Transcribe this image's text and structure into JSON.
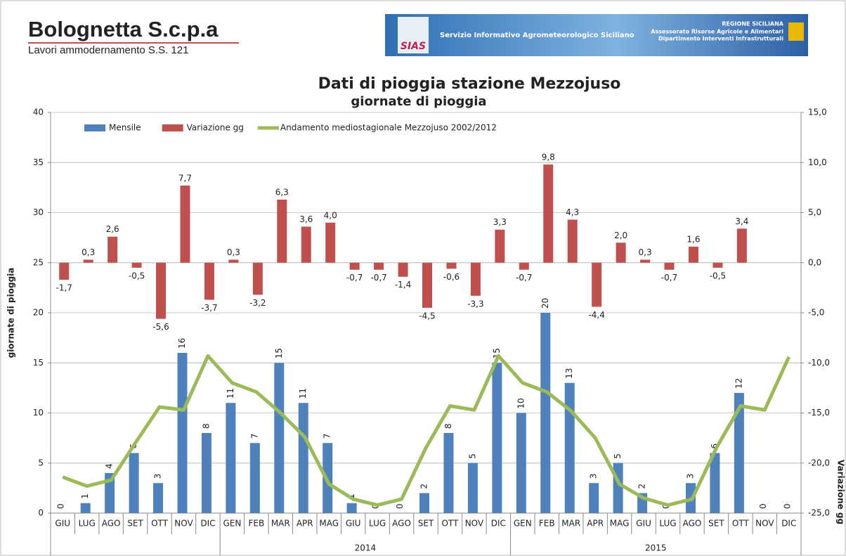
{
  "header": {
    "company": "Bolognetta S.c.p.a",
    "project": "Lavori ammodernamento S.S. 121",
    "banner": {
      "logo": "SIAS",
      "service": "Servizio Informativo Agrometeorologico Siciliano",
      "region": "REGIONE SICILIANA",
      "department1": "Assessorato Risorse Agricole e Alimentari",
      "department2": "Dipartimento Interventi Infrastrutturali"
    }
  },
  "chart_data": {
    "type": "combo",
    "title": "Dati di pioggia stazione Mezzojuso",
    "subtitle": "giornate di pioggia",
    "y_label": "giornate di pioggia",
    "y2_label": "Variazione gg",
    "categories": [
      "GIU",
      "LUG",
      "AGO",
      "SET",
      "OTT",
      "NOV",
      "DIC",
      "GEN",
      "FEB",
      "MAR",
      "APR",
      "MAG",
      "GIU",
      "LUG",
      "AGO",
      "SET",
      "OTT",
      "NOV",
      "DIC",
      "GEN",
      "FEB",
      "MAR",
      "APR",
      "MAG",
      "GIU",
      "LUG",
      "AGO",
      "SET",
      "OTT",
      "NOV",
      "DIC"
    ],
    "years": [
      null,
      null,
      null,
      null,
      null,
      null,
      null,
      "2014",
      "2014",
      "2014",
      "2014",
      "2014",
      "2014",
      "2014",
      "2014",
      "2014",
      "2014",
      "2014",
      "2014",
      "2015",
      "2015",
      "2015",
      "2015",
      "2015",
      "2015",
      "2015",
      "2015",
      "2015",
      "2015",
      "2015",
      "2015"
    ],
    "ylim": [
      0,
      40
    ],
    "yticks": [
      0,
      5,
      10,
      15,
      20,
      25,
      30,
      35,
      40
    ],
    "y2lim": [
      -25,
      15
    ],
    "y2ticks": [
      {
        "value": -25,
        "label": "-25,0"
      },
      {
        "value": -20,
        "label": "-20,0"
      },
      {
        "value": -15,
        "label": "-15,0"
      },
      {
        "value": -10,
        "label": "-10,0"
      },
      {
        "value": -5,
        "label": "-5,0"
      },
      {
        "value": 0,
        "label": "0,0"
      },
      {
        "value": 5,
        "label": "5,0"
      },
      {
        "value": 10,
        "label": "10,0"
      },
      {
        "value": 15,
        "label": "15,0"
      }
    ],
    "grid": true,
    "legend": "top-left",
    "series": [
      {
        "name": "Mensile",
        "type": "bar",
        "color": "#4f81bd",
        "values": [
          0,
          1,
          4,
          6,
          3,
          16,
          8,
          11,
          7,
          15,
          11,
          7,
          1,
          0,
          0,
          2,
          8,
          5,
          15,
          10,
          20,
          13,
          3,
          5,
          2,
          0,
          3,
          6,
          12,
          0,
          0
        ]
      },
      {
        "name": "Variazione gg",
        "type": "bar",
        "axis": "y2",
        "color": "#c0504d",
        "values": [
          -1.7,
          0.3,
          2.6,
          -0.5,
          -5.6,
          7.7,
          -3.7,
          0.3,
          -3.2,
          6.3,
          3.6,
          4.0,
          -0.7,
          -0.7,
          -1.4,
          -4.5,
          -0.6,
          -3.3,
          3.3,
          -0.7,
          9.8,
          4.3,
          -4.4,
          2.0,
          0.3,
          -0.7,
          1.6,
          -0.5,
          3.4,
          null,
          null
        ],
        "value_labels": [
          "-1,7",
          "0,3",
          "2,6",
          "-0,5",
          "-5,6",
          "7,7",
          "-3,7",
          "0,3",
          "-3,2",
          "6,3",
          "3,6",
          "4,0",
          "-0,7",
          "-0,7",
          "-1,4",
          "-4,5",
          "-0,6",
          "-3,3",
          "3,3",
          "-0,7",
          "9,8",
          "4,3",
          "-4,4",
          "2,0",
          "0,3",
          "-0,7",
          "1,6",
          "-0,5",
          "3,4",
          null,
          null
        ]
      },
      {
        "name": "Andamento mediostagionale Mezzojuso 2002/2012",
        "type": "line",
        "color": "#9bbb59",
        "values": [
          3.6,
          2.7,
          3.3,
          7.0,
          10.6,
          10.3,
          15.7,
          13.0,
          12.1,
          10.0,
          7.6,
          2.9,
          1.4,
          0.8,
          1.4,
          6.5,
          10.7,
          10.3,
          15.7,
          13.0,
          12.1,
          10.2,
          7.5,
          2.9,
          1.5,
          0.8,
          1.4,
          6.5,
          10.7,
          10.3,
          15.6
        ]
      }
    ]
  }
}
